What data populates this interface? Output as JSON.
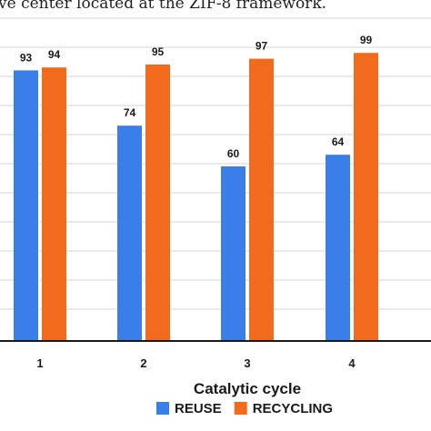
{
  "caption": "ve center located at the ZIF-8 framework.",
  "chart_data": {
    "type": "bar",
    "xlabel": "Catalytic cycle",
    "ylabel": "",
    "categories": [
      "1",
      "2",
      "3",
      "4"
    ],
    "ylim": [
      0,
      100
    ],
    "grid": true,
    "legend_position": "bottom",
    "series": [
      {
        "name": "REUSE",
        "values": [
          93,
          74,
          60,
          64
        ],
        "color": "#3a7ee8"
      },
      {
        "name": "RECYCLING",
        "values": [
          94,
          95,
          97,
          99
        ],
        "color": "#f26a1b"
      }
    ]
  }
}
